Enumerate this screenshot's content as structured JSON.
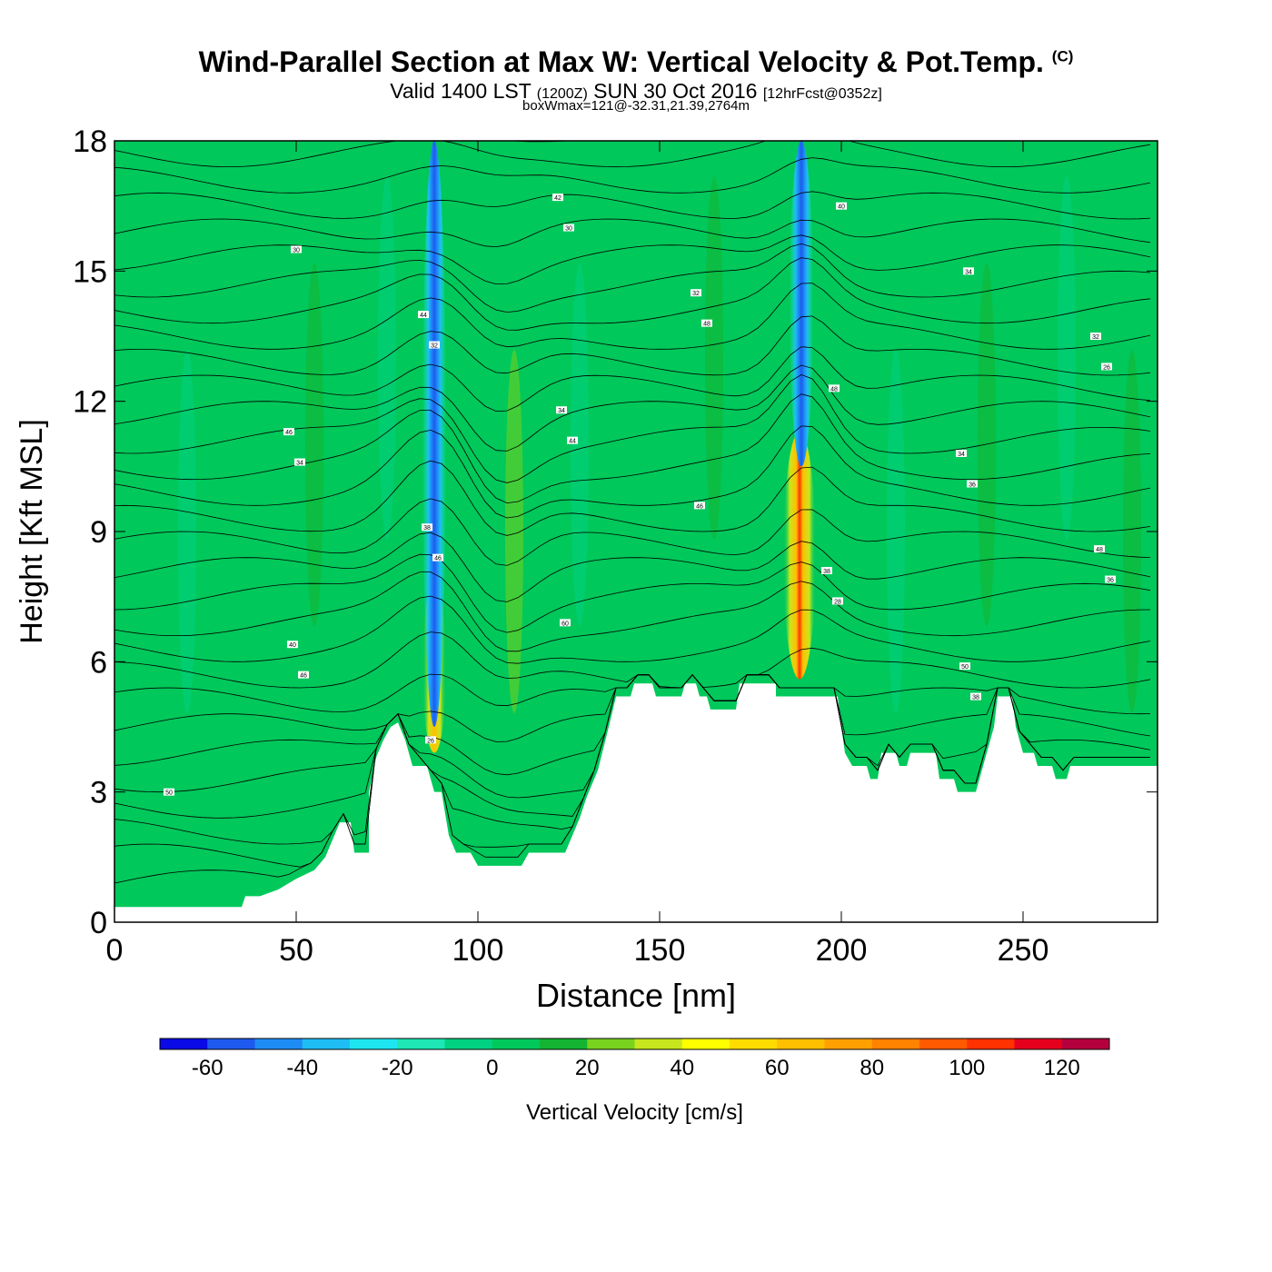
{
  "header": {
    "title": "Wind-Parallel Section at Max W: Vertical Velocity & Pot.Temp.",
    "copyright": "(C)",
    "valid_prefix": "Valid 1400 LST",
    "valid_utc": "(1200Z)",
    "valid_date": "SUN 30 Oct 2016",
    "forecast": "[12hrFcst@0352z]",
    "box_note": "boxWmax=121@-32.31,21.39,2764m"
  },
  "chart_data": {
    "type": "heatmap",
    "xlabel": "Distance [nm]",
    "ylabel": "Height [Kft MSL]",
    "xlim": [
      0,
      287
    ],
    "ylim": [
      0,
      18
    ],
    "x_ticks": [
      0,
      50,
      100,
      150,
      200,
      250
    ],
    "y_ticks": [
      0,
      3,
      6,
      9,
      12,
      15,
      18
    ],
    "colorbar": {
      "label": "Vertical Velocity [cm/s]",
      "tick_values": [
        -60,
        -40,
        -20,
        0,
        20,
        40,
        60,
        80,
        100,
        120
      ],
      "bins": [
        -70,
        -60,
        -50,
        -40,
        -30,
        -20,
        -10,
        0,
        10,
        20,
        30,
        40,
        50,
        60,
        70,
        80,
        90,
        100,
        110,
        120,
        130
      ],
      "colors": [
        "#0a0ae6",
        "#1e5af0",
        "#1e8cf5",
        "#1ebef5",
        "#1ee6f0",
        "#1ee6b4",
        "#00d282",
        "#00c85a",
        "#14b432",
        "#78d21e",
        "#c8e61e",
        "#ffff00",
        "#ffdc00",
        "#ffc000",
        "#ffa000",
        "#ff8200",
        "#ff5a00",
        "#ff3200",
        "#e6001e",
        "#b4003c"
      ]
    },
    "terrain": [
      [
        0,
        0.35
      ],
      [
        32,
        0.35
      ],
      [
        35,
        0.35
      ],
      [
        36,
        0.6
      ],
      [
        40,
        0.6
      ],
      [
        45,
        0.75
      ],
      [
        50,
        1.0
      ],
      [
        55,
        1.2
      ],
      [
        58,
        1.5
      ],
      [
        62,
        2.3
      ],
      [
        65,
        2.3
      ],
      [
        66,
        1.6
      ],
      [
        70,
        1.6
      ],
      [
        70,
        3.0
      ],
      [
        72,
        3.8
      ],
      [
        74,
        4.2
      ],
      [
        76,
        4.5
      ],
      [
        78,
        4.6
      ],
      [
        80,
        4.2
      ],
      [
        82,
        3.6
      ],
      [
        86,
        3.6
      ],
      [
        88,
        3.0
      ],
      [
        90,
        3.0
      ],
      [
        92,
        2.0
      ],
      [
        94,
        1.6
      ],
      [
        98,
        1.6
      ],
      [
        100,
        1.3
      ],
      [
        112,
        1.3
      ],
      [
        114,
        1.6
      ],
      [
        124,
        1.6
      ],
      [
        126,
        2.0
      ],
      [
        128,
        2.4
      ],
      [
        130,
        2.9
      ],
      [
        133,
        3.5
      ],
      [
        136,
        4.5
      ],
      [
        138,
        5.2
      ],
      [
        142,
        5.2
      ],
      [
        143,
        5.5
      ],
      [
        148,
        5.5
      ],
      [
        149,
        5.2
      ],
      [
        156,
        5.2
      ],
      [
        157,
        5.5
      ],
      [
        160,
        5.5
      ],
      [
        161,
        5.2
      ],
      [
        163,
        5.2
      ],
      [
        164,
        4.9
      ],
      [
        171,
        4.9
      ],
      [
        172,
        5.5
      ],
      [
        182,
        5.5
      ],
      [
        182,
        5.2
      ],
      [
        199,
        5.2
      ],
      [
        200,
        4.5
      ],
      [
        201,
        3.9
      ],
      [
        203,
        3.6
      ],
      [
        207,
        3.6
      ],
      [
        208,
        3.3
      ],
      [
        210,
        3.3
      ],
      [
        211,
        3.9
      ],
      [
        215,
        3.9
      ],
      [
        216,
        3.6
      ],
      [
        218,
        3.6
      ],
      [
        219,
        3.9
      ],
      [
        226,
        3.9
      ],
      [
        227,
        3.3
      ],
      [
        231,
        3.3
      ],
      [
        232,
        3.0
      ],
      [
        237,
        3.0
      ],
      [
        238,
        3.3
      ],
      [
        240,
        3.9
      ],
      [
        242,
        4.5
      ],
      [
        243,
        5.2
      ],
      [
        247,
        5.2
      ],
      [
        248,
        4.5
      ],
      [
        250,
        3.9
      ],
      [
        253,
        3.9
      ],
      [
        254,
        3.6
      ],
      [
        258,
        3.6
      ],
      [
        259,
        3.3
      ],
      [
        262,
        3.3
      ],
      [
        263,
        3.6
      ],
      [
        287,
        3.6
      ]
    ],
    "vertical_velocity_features": [
      {
        "x": 88,
        "y_bottom": 3.9,
        "y_top": 7.8,
        "peak": 50
      },
      {
        "x": 188.5,
        "y_bottom": 5.6,
        "y_top": 11.3,
        "peak": 121
      },
      {
        "x": 88,
        "y_bottom": 4.5,
        "y_top": 18,
        "peak": -50
      },
      {
        "x": 189,
        "y_bottom": 10.5,
        "y_top": 18,
        "peak": -50
      }
    ],
    "isentrope_labels": [
      "50",
      "46",
      "46",
      "44",
      "48",
      "40",
      "38",
      "36",
      "34",
      "32",
      "30",
      "28",
      "28",
      "36",
      "26",
      "30",
      "26",
      "60",
      "46",
      "48",
      "34",
      "42",
      "40",
      "38",
      "34",
      "32",
      "36",
      "50",
      "48",
      "46",
      "44",
      "42",
      "40",
      "38",
      "34",
      "32"
    ]
  }
}
